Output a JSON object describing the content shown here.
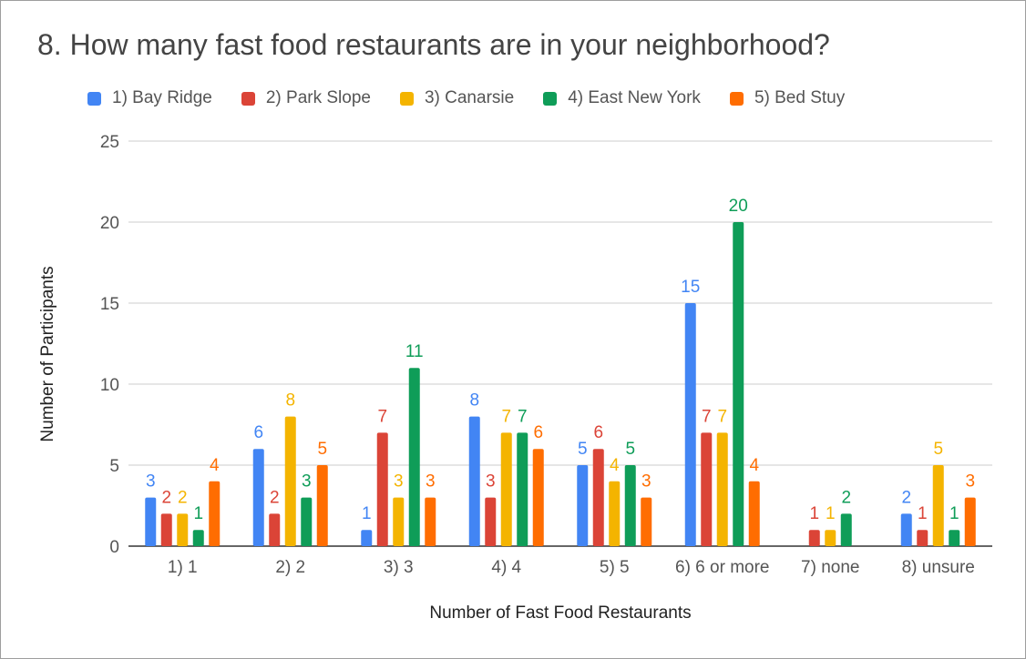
{
  "chart_data": {
    "type": "bar",
    "title": "8. How many fast food restaurants are in your neighborhood?",
    "xlabel": "Number of Fast Food Restaurants",
    "ylabel": "Number of Participants",
    "ylim": [
      0,
      25
    ],
    "yticks": [
      0,
      5,
      10,
      15,
      20,
      25
    ],
    "grid": true,
    "legend_position": "top",
    "categories": [
      "1) 1",
      "2) 2",
      "3) 3",
      "4) 4",
      "5) 5",
      "6) 6 or more",
      "7) none",
      "8) unsure"
    ],
    "series": [
      {
        "name": "1) Bay Ridge",
        "color": "#4285f4",
        "values": [
          3,
          6,
          1,
          8,
          5,
          15,
          0,
          2
        ]
      },
      {
        "name": "2) Park Slope",
        "color": "#db4437",
        "values": [
          2,
          2,
          7,
          3,
          6,
          7,
          1,
          1
        ]
      },
      {
        "name": "3) Canarsie",
        "color": "#f4b400",
        "values": [
          2,
          8,
          3,
          7,
          4,
          7,
          1,
          5
        ]
      },
      {
        "name": "4) East New York",
        "color": "#0f9d58",
        "values": [
          1,
          3,
          11,
          7,
          5,
          20,
          2,
          1
        ]
      },
      {
        "name": "5) Bed Stuy",
        "color": "#ff6d01",
        "values": [
          4,
          5,
          3,
          6,
          3,
          4,
          0,
          3
        ]
      }
    ]
  }
}
